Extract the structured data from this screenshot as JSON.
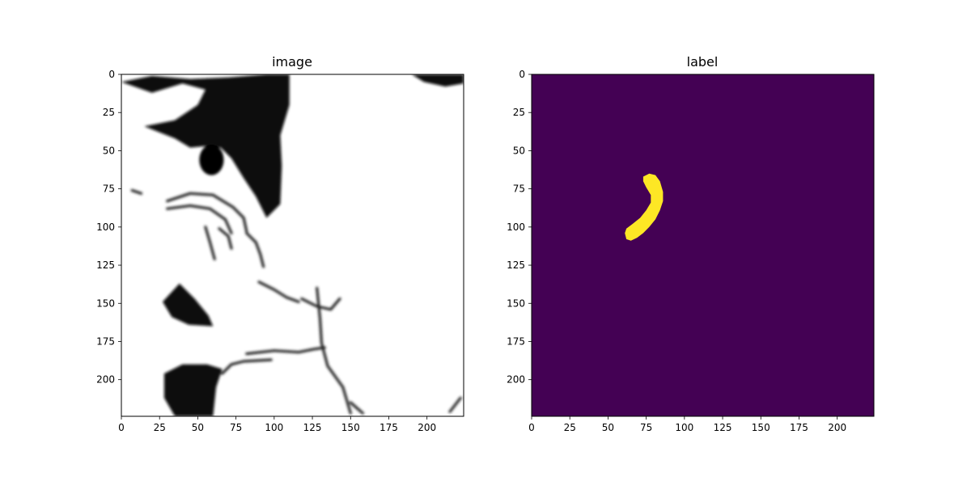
{
  "chart_data": [
    {
      "type": "heatmap",
      "title": "image",
      "colormap": "gray",
      "xlim": [
        0,
        224
      ],
      "ylim": [
        224,
        0
      ],
      "xticks": [
        0,
        25,
        50,
        75,
        100,
        125,
        150,
        175,
        200
      ],
      "yticks": [
        0,
        25,
        50,
        75,
        100,
        125,
        150,
        175,
        200
      ],
      "dark_regions": [
        {
          "name": "upper-dark-mass",
          "polygon": [
            [
              0,
              5
            ],
            [
              20,
              1
            ],
            [
              45,
              3
            ],
            [
              70,
              2
            ],
            [
              95,
              0
            ],
            [
              110,
              0
            ],
            [
              110,
              20
            ],
            [
              104,
              40
            ],
            [
              105,
              60
            ],
            [
              104,
              85
            ],
            [
              95,
              94
            ],
            [
              88,
              80
            ],
            [
              80,
              68
            ],
            [
              72,
              55
            ],
            [
              65,
              48
            ],
            [
              55,
              47
            ],
            [
              45,
              48
            ],
            [
              35,
              42
            ],
            [
              15,
              34
            ],
            [
              35,
              30
            ],
            [
              50,
              20
            ],
            [
              55,
              10
            ],
            [
              40,
              6
            ],
            [
              20,
              12
            ]
          ]
        },
        {
          "name": "lower-left-dark-mass",
          "polygon": [
            [
              28,
              196
            ],
            [
              40,
              190
            ],
            [
              56,
              190
            ],
            [
              66,
              193
            ],
            [
              62,
              205
            ],
            [
              60,
              224
            ],
            [
              35,
              224
            ],
            [
              28,
              212
            ]
          ]
        },
        {
          "name": "mid-left-dark-mass",
          "polygon": [
            [
              27,
              149
            ],
            [
              38,
              137
            ],
            [
              48,
              147
            ],
            [
              57,
              158
            ],
            [
              60,
              165
            ],
            [
              44,
              164
            ],
            [
              33,
              159
            ]
          ]
        },
        {
          "name": "top-right-shadow",
          "polygon": [
            [
              190,
              0
            ],
            [
              224,
              0
            ],
            [
              224,
              6
            ],
            [
              212,
              8
            ],
            [
              198,
              5
            ]
          ]
        }
      ],
      "dark_ellipses": [
        {
          "name": "dark-oval",
          "cx": 59,
          "cy": 56,
          "rx": 8,
          "ry": 10
        }
      ],
      "dark_strokes": [
        {
          "name": "strand-1",
          "points": [
            [
              30,
              83
            ],
            [
              45,
              78
            ],
            [
              60,
              79
            ],
            [
              73,
              87
            ],
            [
              80,
              94
            ],
            [
              82,
              103
            ]
          ]
        },
        {
          "name": "strand-2",
          "points": [
            [
              30,
              88
            ],
            [
              45,
              86
            ],
            [
              58,
              88
            ],
            [
              68,
              95
            ],
            [
              72,
              104
            ]
          ]
        },
        {
          "name": "strand-3",
          "points": [
            [
              55,
              100
            ],
            [
              58,
              110
            ],
            [
              61,
              121
            ]
          ]
        },
        {
          "name": "strand-4",
          "points": [
            [
              64,
              101
            ],
            [
              70,
              106
            ],
            [
              72,
              114
            ]
          ]
        },
        {
          "name": "strand-5",
          "points": [
            [
              82,
              104
            ],
            [
              88,
              110
            ],
            [
              91,
              118
            ],
            [
              93,
              126
            ]
          ]
        },
        {
          "name": "fissure-1",
          "points": [
            [
              82,
              183
            ],
            [
              100,
              181
            ],
            [
              116,
              182
            ],
            [
              126,
              180
            ],
            [
              133,
              179
            ]
          ]
        },
        {
          "name": "fissure-2",
          "points": [
            [
              128,
              140
            ],
            [
              130,
              160
            ],
            [
              131,
              176
            ],
            [
              135,
              191
            ],
            [
              145,
              205
            ],
            [
              150,
              222
            ]
          ]
        },
        {
          "name": "fissure-3",
          "points": [
            [
              118,
              147
            ],
            [
              128,
              152
            ],
            [
              137,
              154
            ],
            [
              143,
              147
            ]
          ]
        },
        {
          "name": "fissure-4",
          "points": [
            [
              90,
              136
            ],
            [
              100,
              141
            ],
            [
              108,
              146
            ],
            [
              116,
              149
            ]
          ]
        },
        {
          "name": "curve-1",
          "points": [
            [
              66,
              196
            ],
            [
              72,
              190
            ],
            [
              80,
              188
            ],
            [
              98,
              187
            ]
          ]
        },
        {
          "name": "edge-1",
          "points": [
            [
              150,
              215
            ],
            [
              158,
              222
            ]
          ]
        },
        {
          "name": "edge-2",
          "points": [
            [
              215,
              221
            ],
            [
              222,
              212
            ]
          ]
        },
        {
          "name": "dash-1",
          "points": [
            [
              7,
              76
            ],
            [
              13,
              78
            ]
          ]
        }
      ]
    },
    {
      "type": "heatmap",
      "title": "label",
      "colormap": "viridis",
      "background_color": "#440154",
      "foreground_color": "#fde725",
      "xlim": [
        0,
        224
      ],
      "ylim": [
        224,
        0
      ],
      "xticks": [
        0,
        25,
        50,
        75,
        100,
        125,
        150,
        175,
        200
      ],
      "yticks": [
        0,
        25,
        50,
        75,
        100,
        125,
        150,
        175,
        200
      ],
      "foreground_polygon": [
        [
          73,
          67
        ],
        [
          77,
          65
        ],
        [
          81,
          66
        ],
        [
          84,
          70
        ],
        [
          86,
          77
        ],
        [
          86,
          83
        ],
        [
          84,
          89
        ],
        [
          81,
          95
        ],
        [
          77,
          100
        ],
        [
          73,
          104
        ],
        [
          69,
          107
        ],
        [
          65,
          109
        ],
        [
          62,
          108
        ],
        [
          61,
          104
        ],
        [
          62,
          101
        ],
        [
          66,
          98
        ],
        [
          71,
          94
        ],
        [
          75,
          89
        ],
        [
          78,
          84
        ],
        [
          78,
          79
        ],
        [
          75,
          74
        ],
        [
          73,
          70
        ]
      ]
    }
  ]
}
